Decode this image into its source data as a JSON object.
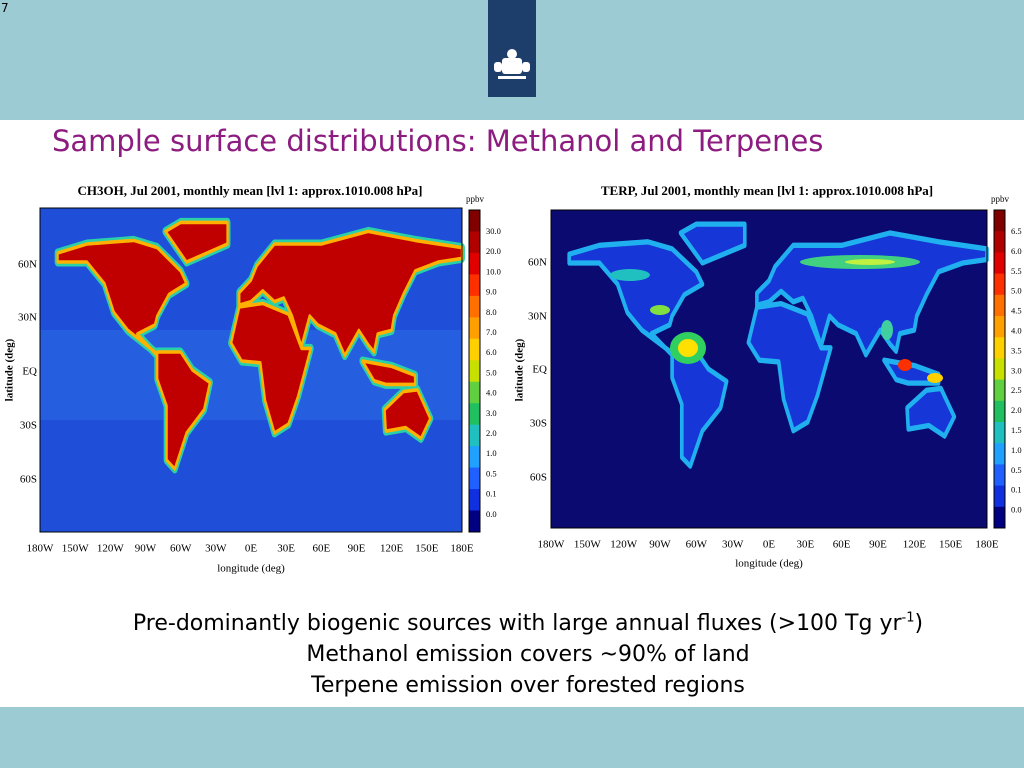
{
  "slide_number": "7",
  "title": "Sample surface distributions: Methanol and Terpenes",
  "figures": [
    {
      "title": "CH3OH, Jul 2001, monthly mean [lvl 1: approx.1010.008 hPa]",
      "unit": "ppbv",
      "colorbar_labels": [
        "30.0",
        "20.0",
        "10.0",
        "9.0",
        "8.0",
        "7.0",
        "6.0",
        "5.0",
        "4.0",
        "3.0",
        "2.0",
        "1.0",
        "0.5",
        "0.1",
        "0.0"
      ],
      "y_ticks": [
        "60N",
        "30N",
        "EQ",
        "30S",
        "60S"
      ],
      "x_ticks": [
        "180W",
        "150W",
        "120W",
        "90W",
        "60W",
        "30W",
        "0E",
        "30E",
        "60E",
        "90E",
        "120E",
        "150E",
        "180E"
      ],
      "x_label": "longitude (deg)",
      "y_label": "latitude (deg)"
    },
    {
      "title": "TERP, Jul 2001, monthly mean [lvl 1: approx.1010.008 hPa]",
      "unit": "ppbv",
      "colorbar_labels": [
        "6.5",
        "6.0",
        "5.5",
        "5.0",
        "4.5",
        "4.0",
        "3.5",
        "3.0",
        "2.5",
        "2.0",
        "1.5",
        "1.0",
        "0.5",
        "0.1",
        "0.0"
      ],
      "y_ticks": [
        "60N",
        "30N",
        "EQ",
        "30S",
        "60S"
      ],
      "x_ticks": [
        "180W",
        "150W",
        "120W",
        "90W",
        "60W",
        "30W",
        "0E",
        "30E",
        "60E",
        "90E",
        "120E",
        "150E",
        "180E"
      ],
      "x_label": "longitude (deg)",
      "y_label": "latitude (deg)"
    }
  ],
  "bullets": [
    {
      "text": "Pre-dominantly biogenic sources with large annual fluxes (>100 Tg yr",
      "sup": "-1",
      "tail": ")"
    },
    {
      "text": "Methanol emission covers ~90%  of land"
    },
    {
      "text": "Terpene emission over forested regions"
    }
  ]
}
